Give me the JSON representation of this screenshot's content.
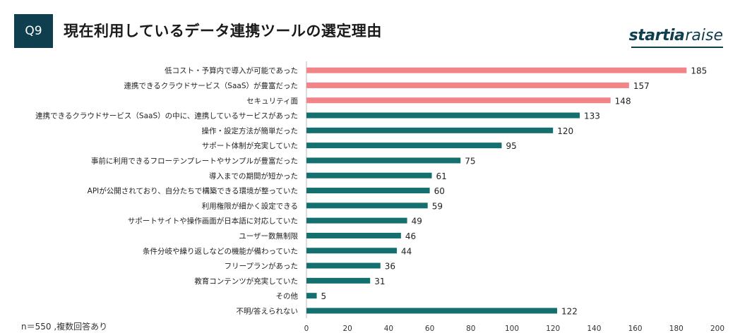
{
  "header": {
    "badge": "Q9",
    "title": "現在利用しているデータ連携ツールの選定理由",
    "logo_bold": "startia",
    "logo_light": "raise"
  },
  "footnote": "n＝550 ,複数回答あり",
  "colors": {
    "highlight": "#f28488",
    "normal": "#13706e",
    "brand": "#0f3f4e"
  },
  "chart_data": {
    "type": "bar",
    "orientation": "horizontal",
    "title": "現在利用しているデータ連携ツールの選定理由",
    "categories": [
      "低コスト・予算内で導入が可能であった",
      "連携できるクラウドサービス（SaaS）が豊富だった",
      "セキュリティ面",
      "連携できるクラウドサービス（SaaS）の中に、連携しているサービスがあった",
      "操作・設定方法が簡単だった",
      "サポート体制が充実していた",
      "事前に利用できるフローテンプレートやサンプルが豊富だった",
      "導入までの期間が短かった",
      "APIが公開されており、自分たちで構築できる環境が整っていた",
      "利用権限が細かく設定できる",
      "サポートサイトや操作画面が日本語に対応していた",
      "ユーザー数無制限",
      "条件分岐や繰り返しなどの機能が備わっていた",
      "フリープランがあった",
      "教育コンテンツが充実していた",
      "その他",
      "不明/答えられない"
    ],
    "values": [
      185,
      157,
      148,
      133,
      120,
      95,
      75,
      61,
      60,
      59,
      49,
      46,
      44,
      36,
      31,
      5,
      122
    ],
    "highlighted": [
      0,
      1,
      2
    ],
    "xlim": [
      0,
      200
    ],
    "xticks": [
      0,
      20,
      40,
      60,
      80,
      100,
      120,
      140,
      160,
      180,
      200
    ],
    "xlabel": "",
    "ylabel": ""
  }
}
